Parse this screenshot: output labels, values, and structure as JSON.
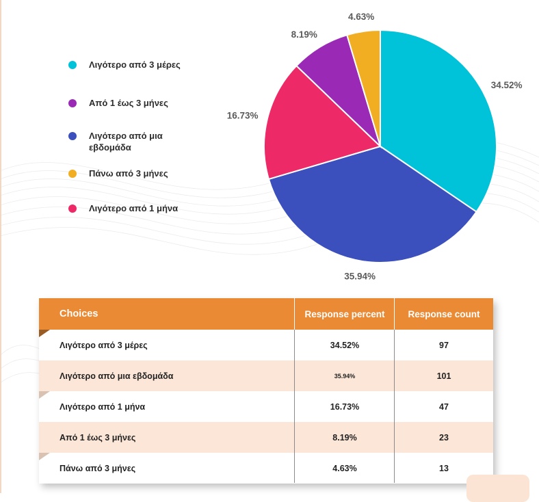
{
  "chart_data": {
    "type": "pie",
    "title": "",
    "slices": [
      {
        "label": "Λιγότερο από 3 μέρες",
        "value": 34.52,
        "value_text": "34.52%",
        "color": "#00c2d9"
      },
      {
        "label": "Λιγότερο από μια εβδομάδα",
        "value": 35.94,
        "value_text": "35.94%",
        "color": "#3b4fbd"
      },
      {
        "label": "Λιγότερο από 1 μήνα",
        "value": 16.73,
        "value_text": "16.73%",
        "color": "#ee2967"
      },
      {
        "label": "Από 1 έως 3 μήνες",
        "value": 8.19,
        "value_text": "8.19%",
        "color": "#9a2ab6"
      },
      {
        "label": "Πάνω από 3 μήνες",
        "value": 4.63,
        "value_text": "4.63%",
        "color": "#f2ae23"
      }
    ],
    "legend_order": [
      0,
      3,
      1,
      4,
      2
    ],
    "legend_placement": "left"
  },
  "table": {
    "headers": {
      "choices": "Choices",
      "percent": "Response percent",
      "count": "Response count"
    },
    "rows": [
      {
        "choice": "Λιγότερο από 3 μέρες",
        "percent": "34.52%",
        "count": "97"
      },
      {
        "choice": "Λιγότερο από μια εβδομάδα",
        "percent": "35.94%",
        "count": "101"
      },
      {
        "choice": "Λιγότερο από 1 μήνα",
        "percent": "16.73%",
        "count": "47"
      },
      {
        "choice": "Από 1 έως 3 μήνες",
        "percent": "8.19%",
        "count": "23"
      },
      {
        "choice": "Πάνω από 3 μήνες",
        "percent": "4.63%",
        "count": "13"
      }
    ]
  },
  "colors": {
    "header_bg": "#eb8a35",
    "row_alt_bg": "#fbe6d7",
    "row_bg": "#ffffff"
  }
}
